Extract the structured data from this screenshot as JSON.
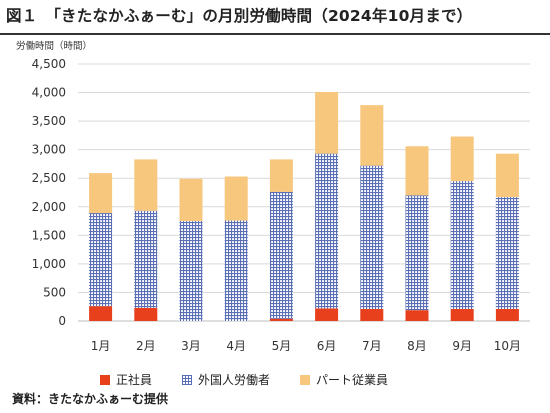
{
  "header": {
    "title": "図１　「きたなかふぁーむ」の月別労働時間（2024年10月まで）",
    "unit_label": "労働時間（時間）"
  },
  "footer": {
    "source": "資料：きたなかふぁーむ提供"
  },
  "chart_data": {
    "type": "bar",
    "stacked": true,
    "categories": [
      "1月",
      "2月",
      "3月",
      "4月",
      "5月",
      "6月",
      "7月",
      "8月",
      "9月",
      "10月"
    ],
    "series": [
      {
        "name": "正社員",
        "color": "#e8401c",
        "values": [
          260,
          230,
          0,
          0,
          40,
          220,
          210,
          190,
          210,
          210
        ]
      },
      {
        "name": "外国人労働者",
        "color": "#5a6fb4",
        "values": [
          1630,
          1700,
          1750,
          1760,
          2220,
          2710,
          2510,
          2010,
          2240,
          1960
        ]
      },
      {
        "name": "パート従業員",
        "color": "#f7c77e",
        "values": [
          700,
          900,
          740,
          770,
          570,
          1080,
          1060,
          860,
          780,
          760
        ]
      }
    ],
    "ylim": [
      0,
      4500
    ],
    "yticks": [
      0,
      500,
      1000,
      1500,
      2000,
      2500,
      3000,
      3500,
      4000,
      4500
    ],
    "ytick_labels": [
      "0",
      "500",
      "1,000",
      "1,500",
      "2,000",
      "2,500",
      "3,000",
      "3,500",
      "4,000",
      "4,500"
    ],
    "grid": true,
    "legend_position": "bottom"
  }
}
